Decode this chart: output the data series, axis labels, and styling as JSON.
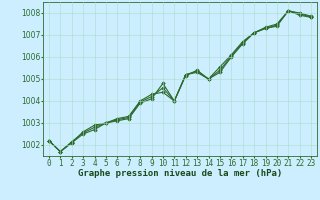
{
  "xlabel": "Graphe pression niveau de la mer (hPa)",
  "hours": [
    0,
    1,
    2,
    3,
    4,
    5,
    6,
    7,
    8,
    9,
    10,
    11,
    12,
    13,
    14,
    15,
    16,
    17,
    18,
    19,
    20,
    21,
    22,
    23
  ],
  "line1": [
    1002.2,
    1001.7,
    1002.1,
    1002.5,
    1002.7,
    1003.0,
    1003.1,
    1003.2,
    1003.9,
    1004.1,
    1004.8,
    1004.0,
    1005.2,
    1005.3,
    1005.0,
    1005.3,
    1006.0,
    1006.6,
    1007.1,
    1007.3,
    1007.4,
    1008.1,
    1007.9,
    1007.8
  ],
  "line2": [
    1002.2,
    1001.7,
    1002.1,
    1002.6,
    1002.9,
    1003.0,
    1003.2,
    1003.3,
    1004.0,
    1004.3,
    1004.4,
    1004.0,
    1005.15,
    1005.4,
    1005.0,
    1005.55,
    1006.1,
    1006.7,
    1007.1,
    1007.35,
    1007.5,
    1008.1,
    1008.0,
    1007.85
  ],
  "line3": [
    1002.2,
    1001.7,
    1002.15,
    1002.55,
    1002.8,
    1003.0,
    1003.15,
    1003.25,
    1003.95,
    1004.2,
    1004.6,
    1004.0,
    1005.2,
    1005.35,
    1005.0,
    1005.4,
    1006.05,
    1006.65,
    1007.1,
    1007.3,
    1007.45,
    1008.1,
    1007.95,
    1007.83
  ],
  "line_color": "#2d6a2d",
  "marker": "D",
  "marker_size": 1.8,
  "bg_color": "#cceeff",
  "grid_color": "#aaddcc",
  "ylim": [
    1001.5,
    1008.5
  ],
  "yticks": [
    1002,
    1003,
    1004,
    1005,
    1006,
    1007,
    1008
  ],
  "line_width": 0.8,
  "xlabel_color": "#1a4a1a",
  "xlabel_fontsize": 6.5,
  "tick_fontsize": 5.5
}
